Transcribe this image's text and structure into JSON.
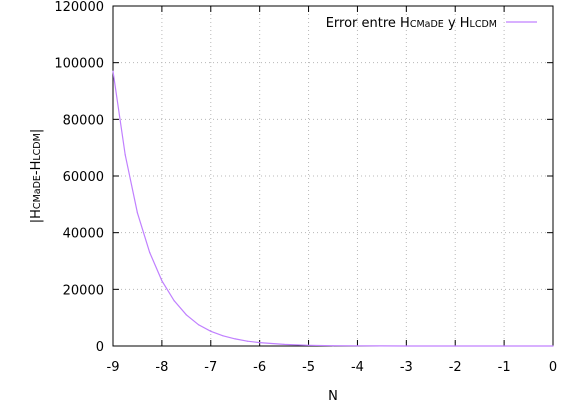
{
  "chart_data": {
    "type": "line",
    "xlabel": "N",
    "ylabel": {
      "prefix": "|H",
      "sub1": "CMaDE",
      "mid": "-H",
      "sub2": "LCDM",
      "suffix": "|"
    },
    "xlim": [
      -9,
      0
    ],
    "ylim": [
      0,
      120000
    ],
    "xticks": [
      -9,
      -8,
      -7,
      -6,
      -5,
      -4,
      -3,
      -2,
      -1,
      0
    ],
    "yticks": [
      0,
      20000,
      40000,
      60000,
      80000,
      100000,
      120000
    ],
    "grid": true,
    "legend_position": "top-right",
    "series": [
      {
        "name": {
          "prefix": "Error entre H",
          "sub1": "CMaDE",
          "mid": " y H",
          "sub2": "LCDM"
        },
        "color": "#c080ff",
        "x": [
          -9,
          -8.75,
          -8.5,
          -8.25,
          -8,
          -7.75,
          -7.5,
          -7.25,
          -7,
          -6.75,
          -6.5,
          -6.25,
          -6,
          -5.5,
          -5,
          -4.5,
          -4,
          -3,
          -2,
          -1,
          0
        ],
        "y": [
          97000,
          67500,
          47000,
          33000,
          23000,
          16000,
          11000,
          7500,
          5200,
          3600,
          2500,
          1700,
          1200,
          560,
          260,
          120,
          60,
          15,
          4,
          1,
          0
        ]
      }
    ]
  }
}
